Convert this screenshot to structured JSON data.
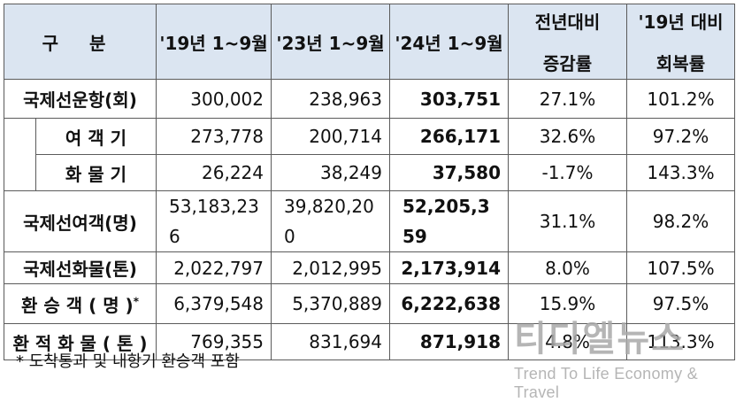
{
  "headers": [
    "구 분",
    "'19년 1~9월",
    "'23년 1~9월",
    "'24년 1~9월",
    [
      "전년대비",
      "증감률"
    ],
    [
      "'19년 대비",
      "회복률"
    ]
  ],
  "rows": [
    {
      "name": "국제선운항(회)",
      "indent": false,
      "v19": "300,002",
      "v23": "238,963",
      "v24": "303,751",
      "yoy": "27.1%",
      "rec": "101.2%"
    },
    {
      "name": "여 객 기",
      "indent": true,
      "v19": "273,778",
      "v23": "200,714",
      "v24": "266,171",
      "yoy": "32.6%",
      "rec": "97.2%"
    },
    {
      "name": "화 물 기",
      "indent": true,
      "v19": "26,224",
      "v23": "38,249",
      "v24": "37,580",
      "yoy": "-1.7%",
      "rec": "143.3%"
    },
    {
      "name": "국제선여객(명)",
      "indent": false,
      "v19": "53,183,236",
      "v23": "39,820,200",
      "v24": "52,205,359",
      "yoy": "31.1%",
      "rec": "98.2%"
    },
    {
      "name": "국제선화물(톤)",
      "indent": false,
      "v19": "2,022,797",
      "v23": "2,012,995",
      "v24": "2,173,914",
      "yoy": "8.0%",
      "rec": "107.5%"
    },
    {
      "name": "환 승 객 ( 명 )",
      "mark": "*",
      "indent": false,
      "v19": "6,379,548",
      "v23": "5,370,889",
      "v24": "6,222,638",
      "yoy": "15.9%",
      "rec": "97.5%"
    },
    {
      "name": "환 적 화 물 ( 톤 )",
      "indent": false,
      "v19": "769,355",
      "v23": "831,694",
      "v24": "871,918",
      "yoy": "4.8%",
      "rec": "113.3%"
    }
  ],
  "footnote": "* 도착통과 및 내항기 환승객 포함",
  "watermark": {
    "brand": "티디엘뉴스",
    "tagline": "Trend To Life Economy & Travel"
  }
}
